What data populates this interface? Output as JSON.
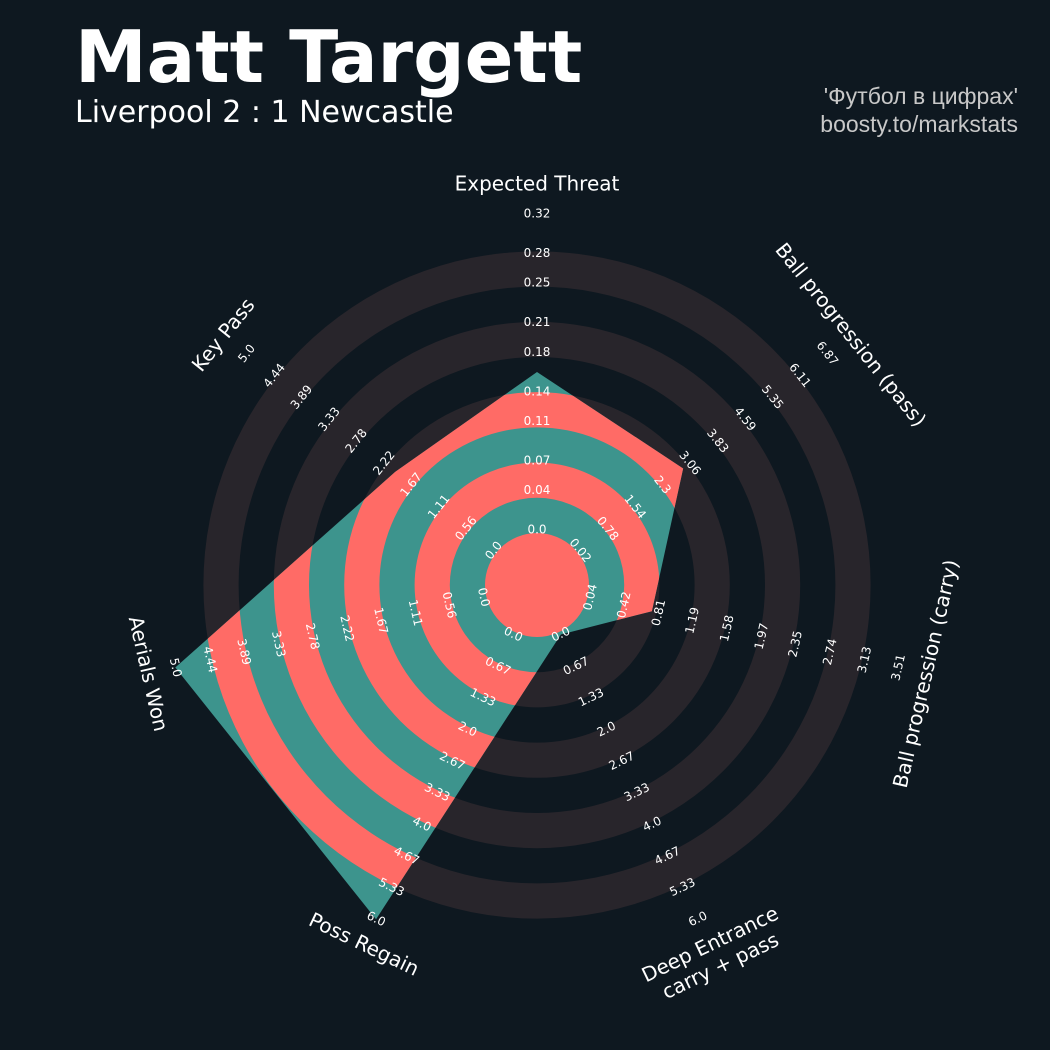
{
  "chart_data": {
    "type": "radar",
    "title": "Matt Targett",
    "subtitle": "Liverpool 2 : 1 Newcastle",
    "credits": [
      "'Футбол в цифрах'",
      "boosty.to/markstats"
    ],
    "axes": [
      {
        "label": [
          "Expected Threat"
        ],
        "lim": [
          0,
          0.32
        ],
        "ticks": [
          {
            "value": 0,
            "label": "0.0"
          },
          0.04,
          0.07,
          0.11,
          0.14,
          0.18,
          0.21,
          0.25,
          0.28,
          0.32
        ]
      },
      {
        "label": [
          "Key Pass"
        ],
        "lim": [
          0,
          5
        ],
        "ticks": [
          {
            "value": 0,
            "label": "0.0"
          },
          0.56,
          1.11,
          1.67,
          2.22,
          2.78,
          3.33,
          3.89,
          4.44,
          {
            "value": 5,
            "label": "5.0"
          }
        ]
      },
      {
        "label": [
          "Aerials Won"
        ],
        "lim": [
          0,
          5
        ],
        "ticks": [
          {
            "value": 0,
            "label": "0.0"
          },
          0.56,
          1.11,
          1.67,
          2.22,
          2.78,
          3.33,
          3.89,
          4.44,
          {
            "value": 5,
            "label": "5.0"
          }
        ]
      },
      {
        "label": [
          "Poss Regain"
        ],
        "lim": [
          0,
          6
        ],
        "ticks": [
          {
            "value": 0,
            "label": "0.0"
          },
          0.67,
          1.33,
          {
            "value": 2,
            "label": "2.0"
          },
          2.67,
          3.33,
          {
            "value": 4,
            "label": "4.0"
          },
          4.67,
          5.33,
          {
            "value": 6,
            "label": "6.0"
          }
        ]
      },
      {
        "label": [
          "Deep Entrance",
          "carry + pass"
        ],
        "lim": [
          0,
          6
        ],
        "ticks": [
          {
            "value": 0,
            "label": "0.0"
          },
          0.67,
          1.33,
          {
            "value": 2,
            "label": "2.0"
          },
          2.67,
          3.33,
          {
            "value": 4,
            "label": "4.0"
          },
          4.67,
          5.33,
          {
            "value": 6,
            "label": "6.0"
          }
        ]
      },
      {
        "label": [
          "Ball progression (carry)"
        ],
        "lim": [
          0.04,
          3.51
        ],
        "ticks": [
          0.04,
          0.42,
          0.81,
          1.19,
          1.58,
          1.97,
          2.35,
          2.74,
          3.13,
          3.51
        ]
      },
      {
        "label": [
          "Ball progression (pass)"
        ],
        "lim": [
          0.02,
          6.87
        ],
        "ticks": [
          0.02,
          0.78,
          1.54,
          2.3,
          3.06,
          3.83,
          4.59,
          5.35,
          6.11,
          6.87
        ]
      }
    ],
    "series": [
      {
        "color": "#3d948d",
        "values": [
          0.16,
          2,
          5,
          6,
          0,
          0.73,
          2.88
        ]
      }
    ]
  }
}
